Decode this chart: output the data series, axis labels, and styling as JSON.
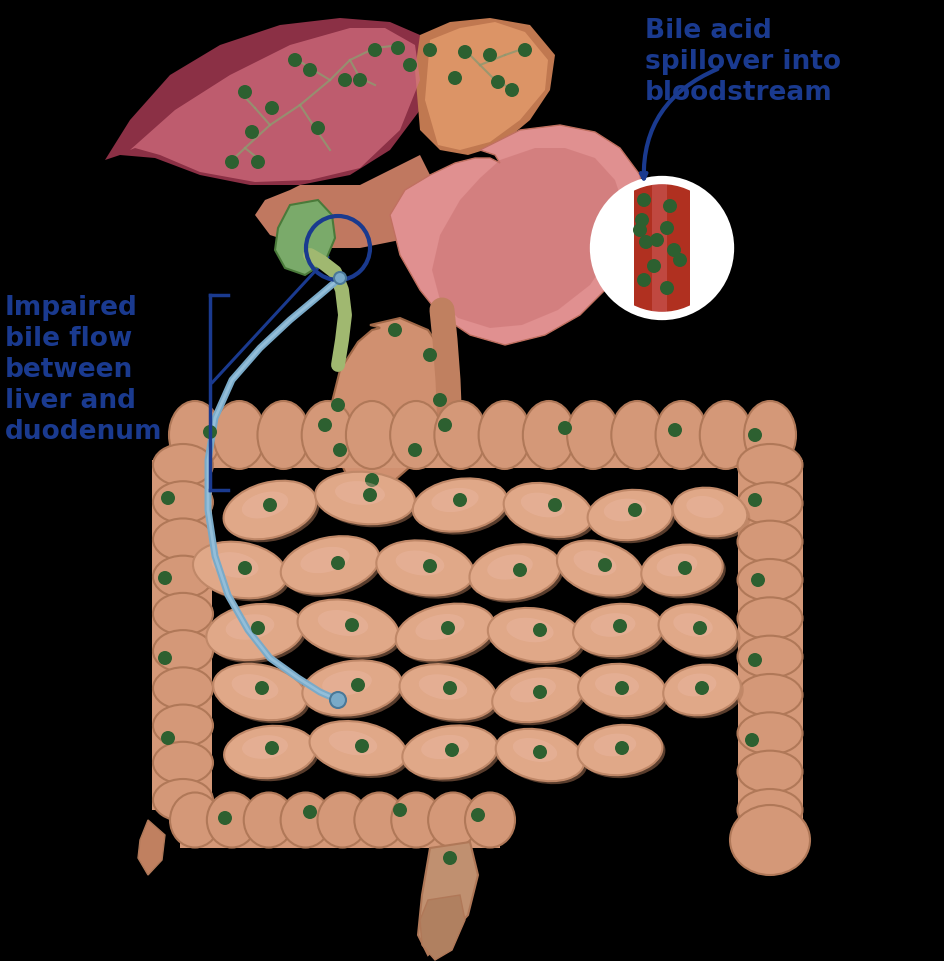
{
  "background_color": "#000000",
  "fig_width": 9.45,
  "fig_height": 9.61,
  "label_left_text": "Impaired\nbile flow\nbetween\nliver and\nduodenum",
  "label_right_text": "Bile acid\nspillover into\nbloodstream",
  "label_color": "#1a3a8f",
  "label_fontsize": 19,
  "liver_left_color": "#d47080",
  "liver_left_dark": "#8b3045",
  "liver_right_color": "#e8a070",
  "liver_right_dark": "#c07850",
  "stomach_color": "#e09090",
  "stomach_dark": "#c07060",
  "gallbladder_color": "#7aaa6a",
  "bile_duct_tree_color": "#a0b870",
  "intestine_color": "#e0a888",
  "intestine_edge": "#c08868",
  "colon_color": "#d49878",
  "colon_edge": "#b07858",
  "colon_haustral": "#c08868",
  "tube_color": "#7aaac8",
  "tube_highlight": "#aad0e8",
  "arrow_color": "#1a3a8f",
  "circle_color": "#1a3a8f",
  "blood_vessel_color": "#b03020",
  "blood_vessel_light": "#d06060",
  "bile_dot_color": "#2d6030",
  "bracket_color": "#1a3a8f",
  "white_color": "#ffffff"
}
